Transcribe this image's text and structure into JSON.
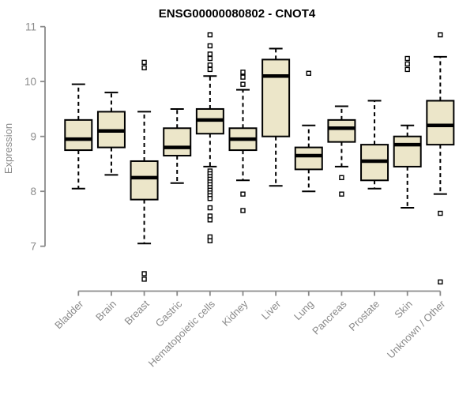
{
  "page": {
    "background": "#FFFFFF"
  },
  "chart_data": {
    "type": "boxplot",
    "title": "ENSG00000080802 - CNOT4",
    "ylabel": "Expression",
    "xlabel": "",
    "ylim": [
      7,
      11
    ],
    "yticks": [
      "7",
      "8",
      "9",
      "10",
      "11"
    ],
    "grid": false,
    "legend": null,
    "x_label_rotation": 45,
    "categories": [
      "Bladder",
      "Brain",
      "Breast",
      "Gastric",
      "Hematopoietic cells",
      "Kidney",
      "Liver",
      "Lung",
      "Pancreas",
      "Prostate",
      "Skin",
      "Unknown / Other"
    ],
    "series": [
      {
        "name": "Bladder",
        "whisker_low": 8.05,
        "q1": 8.75,
        "median": 8.95,
        "q3": 9.3,
        "whisker_high": 9.95,
        "outliers": []
      },
      {
        "name": "Brain",
        "whisker_low": 8.3,
        "q1": 8.8,
        "median": 9.1,
        "q3": 9.45,
        "whisker_high": 9.8,
        "outliers": []
      },
      {
        "name": "Breast",
        "whisker_low": 7.05,
        "q1": 7.85,
        "median": 8.25,
        "q3": 8.55,
        "whisker_high": 9.45,
        "outliers": [
          10.35,
          10.25,
          6.5,
          6.4
        ]
      },
      {
        "name": "Gastric",
        "whisker_low": 8.15,
        "q1": 8.65,
        "median": 8.8,
        "q3": 9.15,
        "whisker_high": 9.5,
        "outliers": []
      },
      {
        "name": "Hematopoietic cells",
        "whisker_low": 8.45,
        "q1": 9.05,
        "median": 9.3,
        "q3": 9.5,
        "whisker_high": 10.1,
        "outliers": [
          10.85,
          10.65,
          10.5,
          10.42,
          10.3,
          10.22,
          8.37,
          8.32,
          8.27,
          8.22,
          8.17,
          8.12,
          8.07,
          8.02,
          7.97,
          7.92,
          7.87,
          7.7,
          7.55,
          7.48,
          7.17,
          7.1
        ]
      },
      {
        "name": "Kidney",
        "whisker_low": 8.2,
        "q1": 8.75,
        "median": 8.95,
        "q3": 9.15,
        "whisker_high": 9.85,
        "outliers": [
          10.17,
          10.08,
          9.95,
          7.95,
          7.65
        ]
      },
      {
        "name": "Liver",
        "whisker_low": 8.1,
        "q1": 9.0,
        "median": 10.1,
        "q3": 10.4,
        "whisker_high": 10.6,
        "outliers": []
      },
      {
        "name": "Lung",
        "whisker_low": 8.0,
        "q1": 8.4,
        "median": 8.65,
        "q3": 8.8,
        "whisker_high": 9.2,
        "outliers": [
          10.15
        ]
      },
      {
        "name": "Pancreas",
        "whisker_low": 8.45,
        "q1": 8.9,
        "median": 9.15,
        "q3": 9.3,
        "whisker_high": 9.55,
        "outliers": [
          8.25,
          7.95
        ]
      },
      {
        "name": "Prostate",
        "whisker_low": 8.05,
        "q1": 8.2,
        "median": 8.55,
        "q3": 8.85,
        "whisker_high": 9.65,
        "outliers": []
      },
      {
        "name": "Skin",
        "whisker_low": 7.7,
        "q1": 8.45,
        "median": 8.85,
        "q3": 9.0,
        "whisker_high": 9.2,
        "outliers": [
          10.42,
          10.32,
          10.22
        ]
      },
      {
        "name": "Unknown / Other",
        "whisker_low": 7.95,
        "q1": 8.85,
        "median": 9.2,
        "q3": 9.65,
        "whisker_high": 10.45,
        "outliers": [
          10.85,
          7.6,
          6.35
        ]
      }
    ],
    "colors": {
      "box_fill": "#ECE6C9",
      "box_border": "#000000",
      "median": "#000000",
      "whisker": "#000000",
      "outlier_stroke": "#000000",
      "outlier_fill": "#FFFFFF",
      "axis": "#8A8A8A",
      "tick_label": "#8A8A8A",
      "title": "#000000"
    }
  }
}
